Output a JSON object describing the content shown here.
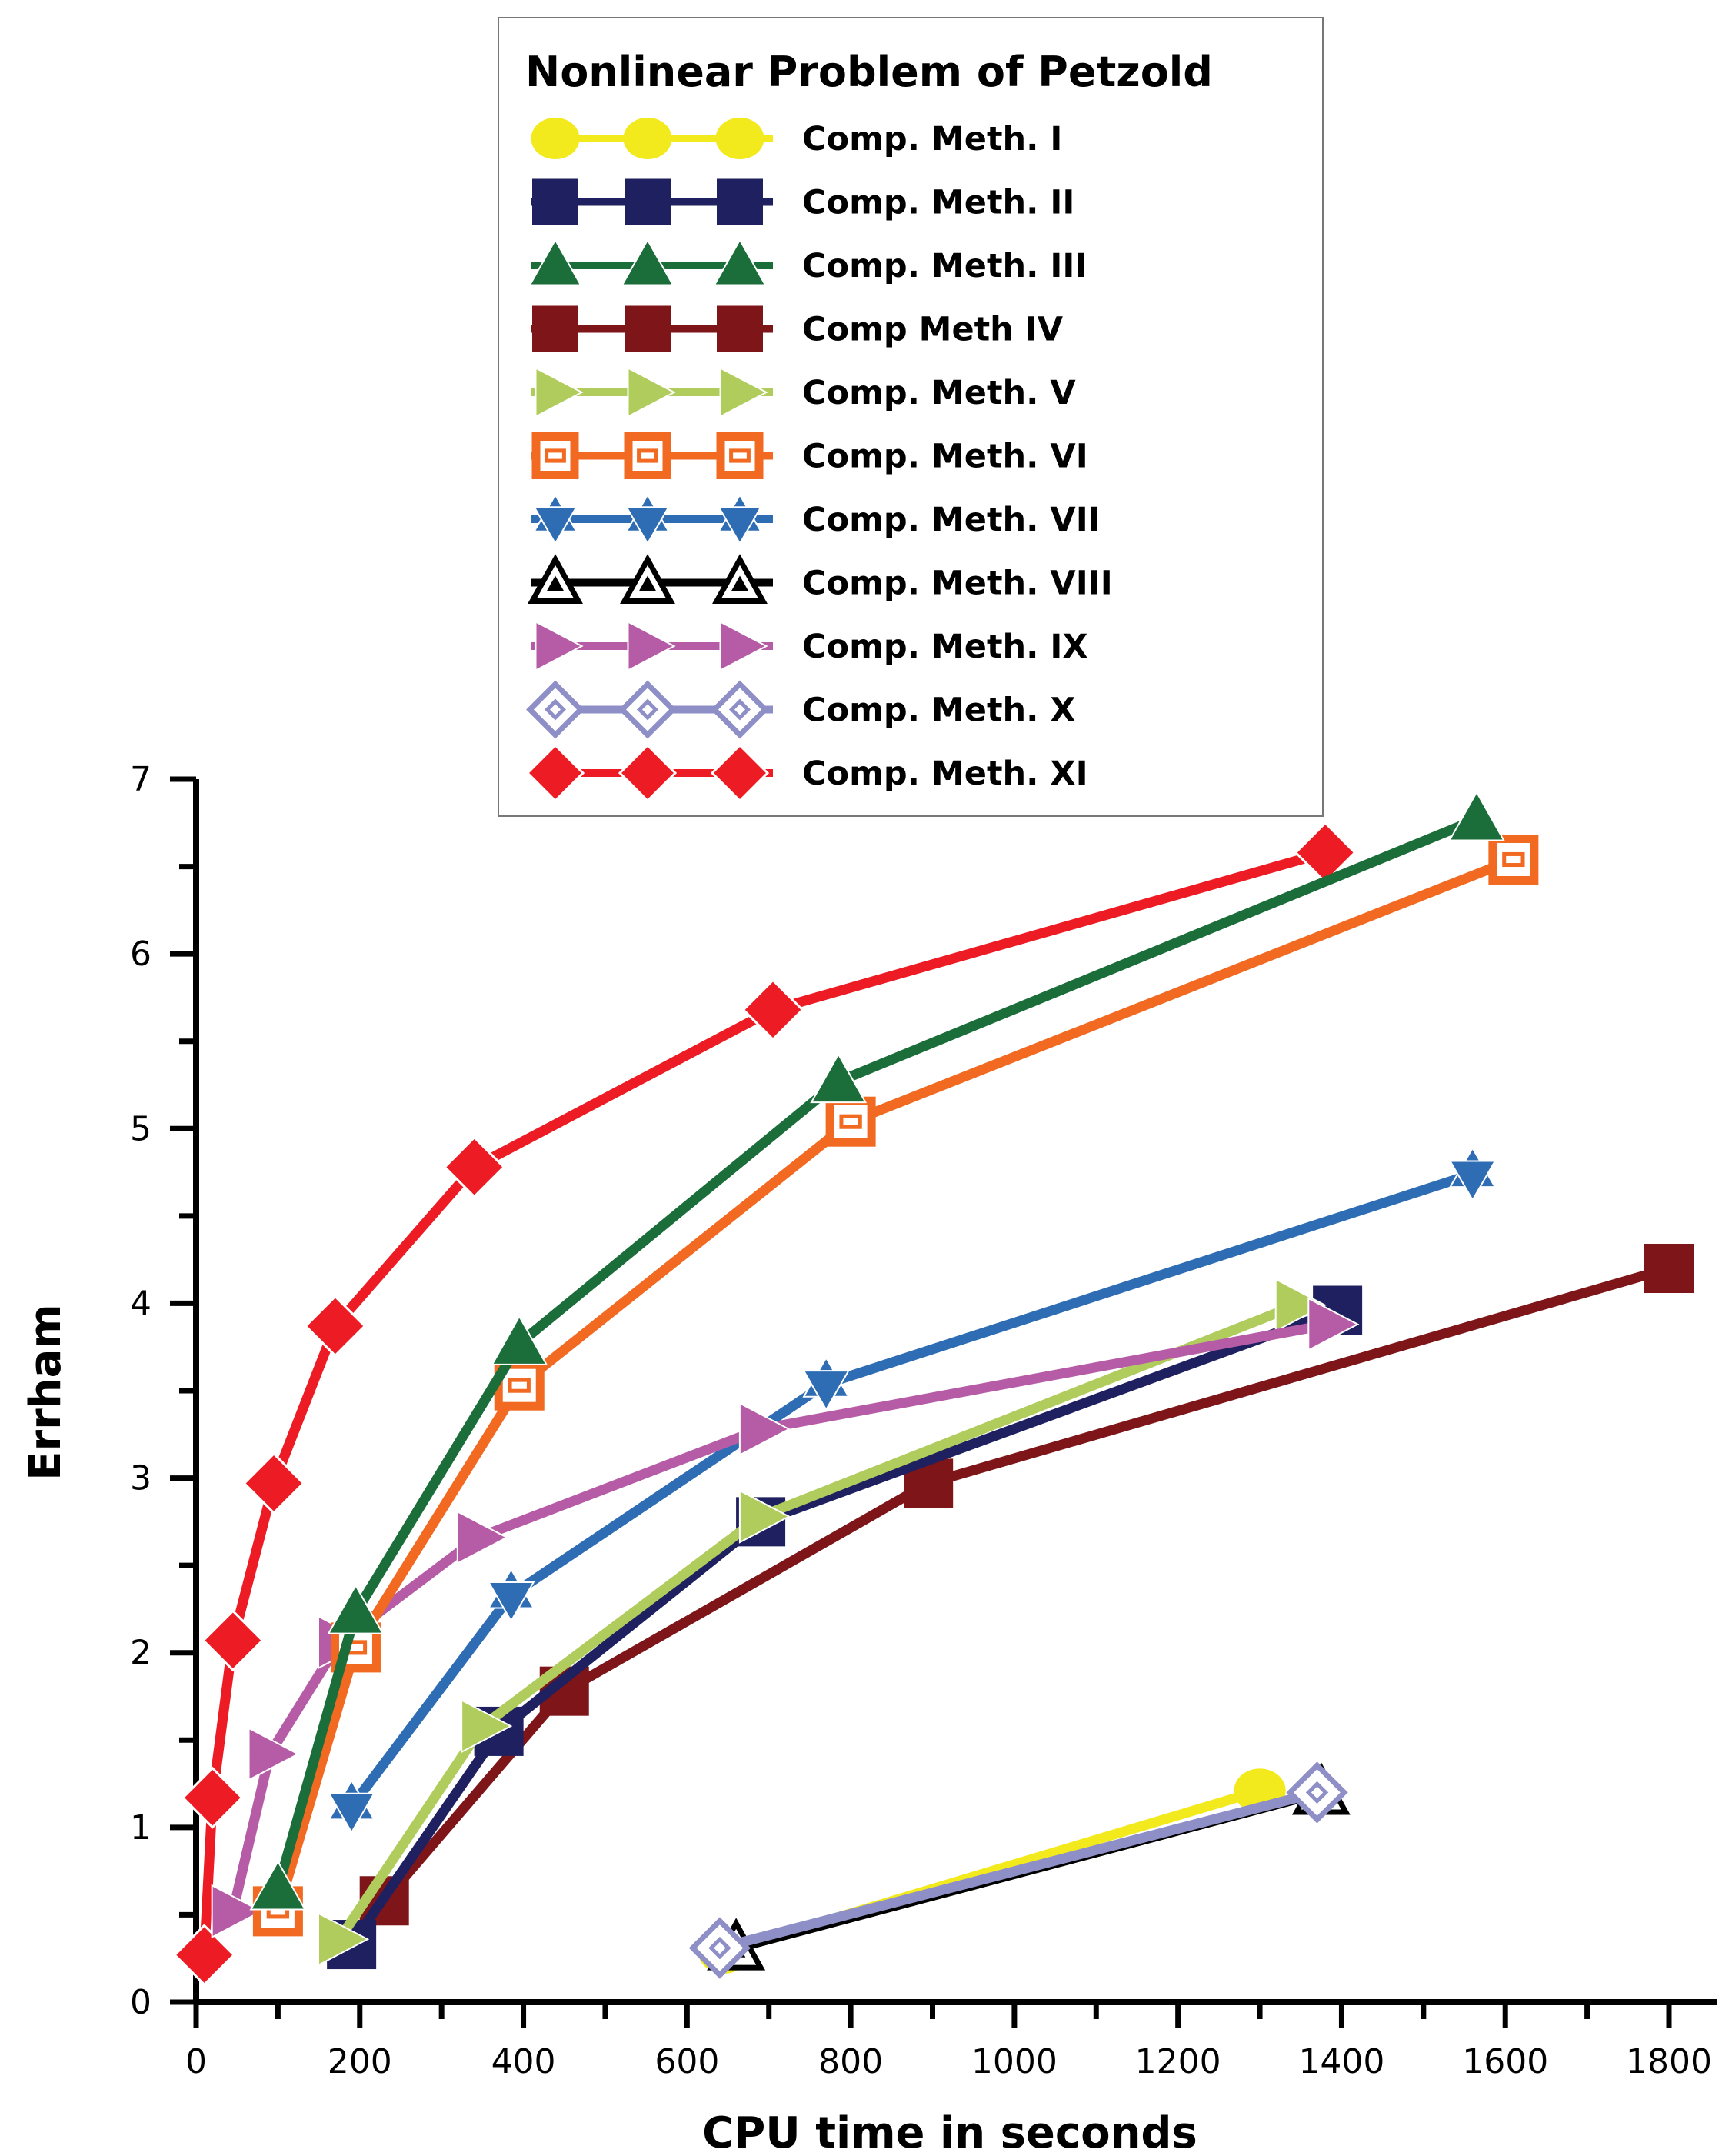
{
  "chart_data": {
    "type": "line",
    "title": "Nonlinear Problem of Petzold",
    "xlabel": "CPU time in seconds",
    "ylabel": "Errham",
    "xlim": [
      0,
      1800
    ],
    "ylim": [
      0,
      7
    ],
    "x_ticks": [
      0,
      200,
      400,
      600,
      800,
      1000,
      1200,
      1400,
      1600,
      1800
    ],
    "y_ticks": [
      0,
      1,
      2,
      3,
      4,
      5,
      6,
      7
    ],
    "legend_position": "top-center",
    "series": [
      {
        "name": "Comp. Meth. I",
        "color": "#f2ea1c",
        "marker": "circle",
        "x": [
          645,
          1300
        ],
        "y": [
          0.29,
          1.21
        ]
      },
      {
        "name": "Comp. Meth. II",
        "color": "#1f2060",
        "marker": "square",
        "x": [
          190,
          370,
          690,
          1395
        ],
        "y": [
          0.33,
          1.55,
          2.75,
          3.96
        ]
      },
      {
        "name": "Comp. Meth. III",
        "color": "#1b6e3a",
        "marker": "triangle-up",
        "x": [
          100,
          195,
          395,
          785,
          1565
        ],
        "y": [
          0.65,
          2.23,
          3.77,
          5.27,
          6.77
        ]
      },
      {
        "name": "Comp Meth IV",
        "color": "#7e1518",
        "marker": "square",
        "x": [
          230,
          450,
          895,
          1800
        ],
        "y": [
          0.58,
          1.78,
          2.97,
          4.2
        ]
      },
      {
        "name": "Comp. Meth. V",
        "color": "#b0cc5c",
        "marker": "triangle-right",
        "x": [
          175,
          350,
          690,
          1345
        ],
        "y": [
          0.36,
          1.58,
          2.78,
          3.99
        ]
      },
      {
        "name": "Comp. Meth. VI",
        "color": "#f26a21",
        "marker": "open-square",
        "x": [
          100,
          195,
          395,
          800,
          1610
        ],
        "y": [
          0.52,
          2.03,
          3.53,
          5.04,
          6.54
        ]
      },
      {
        "name": "Comp. Meth. VII",
        "color": "#2e6db4",
        "marker": "star",
        "x": [
          190,
          385,
          770,
          1560
        ],
        "y": [
          1.12,
          2.33,
          3.54,
          4.74
        ]
      },
      {
        "name": "Comp. Meth. VIII",
        "color": "#000000",
        "marker": "open-triangle",
        "x": [
          660,
          1375
        ],
        "y": [
          0.31,
          1.2
        ]
      },
      {
        "name": "Comp. Meth. IX",
        "color": "#b65ca6",
        "marker": "triangle-right",
        "x": [
          45,
          90,
          175,
          345,
          690,
          1385
        ],
        "y": [
          0.52,
          1.42,
          2.06,
          2.66,
          3.28,
          3.88
        ]
      },
      {
        "name": "Comp. Meth. X",
        "color": "#8f8fc8",
        "marker": "open-diamond",
        "x": [
          640,
          1370
        ],
        "y": [
          0.31,
          1.2
        ]
      },
      {
        "name": "Comp. Meth. XI",
        "color": "#ed1c24",
        "marker": "diamond",
        "x": [
          10,
          20,
          45,
          95,
          170,
          340,
          705,
          1380
        ],
        "y": [
          0.27,
          1.17,
          2.07,
          2.97,
          3.87,
          4.78,
          5.68,
          6.58
        ]
      }
    ]
  }
}
